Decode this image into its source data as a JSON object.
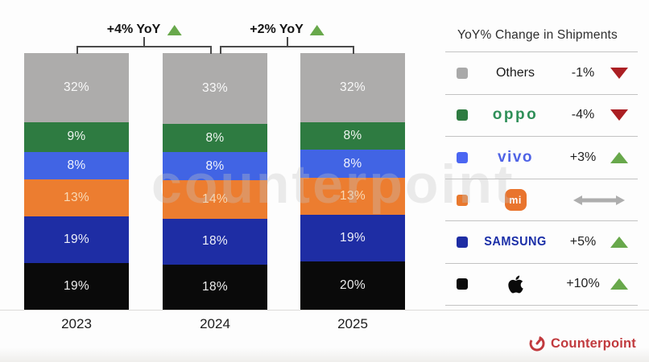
{
  "chart_data": {
    "type": "bar",
    "variant": "stacked-100-percent",
    "title": "",
    "categories": [
      "2023",
      "2024",
      "2025"
    ],
    "unit": "%",
    "grid": false,
    "legend_position": "right",
    "series_top_to_bottom": [
      {
        "name": "Others",
        "color": "#adacab",
        "values": [
          32,
          33,
          32
        ]
      },
      {
        "name": "OPPO",
        "color": "#2e7b41",
        "values": [
          9,
          8,
          8
        ]
      },
      {
        "name": "vivo",
        "color": "#4164e4",
        "values": [
          8,
          8,
          8
        ]
      },
      {
        "name": "Xiaomi",
        "color": "#ec7d30",
        "label_color": "#f8d9b5",
        "values": [
          13,
          14,
          13
        ]
      },
      {
        "name": "Samsung",
        "color": "#1e2da4",
        "values": [
          19,
          18,
          19
        ]
      },
      {
        "name": "Apple",
        "color": "#0a0a0a",
        "values": [
          19,
          18,
          20
        ]
      }
    ],
    "growth_annotations": [
      {
        "label": "+4% YoY",
        "trend": "up",
        "between": [
          "2023",
          "2024"
        ]
      },
      {
        "label": "+2% YoY",
        "trend": "up",
        "between": [
          "2024",
          "2025"
        ]
      }
    ]
  },
  "legend": {
    "title": "YoY% Change in Shipments",
    "rows": [
      {
        "brand": "Others",
        "logo": "plain",
        "text": "Others",
        "change": "-1%",
        "trend": "down",
        "swatch": "#a9a9a9"
      },
      {
        "brand": "OPPO",
        "logo": "oppo",
        "text": "oppo",
        "change": "-4%",
        "trend": "down",
        "swatch": "#2e7b41"
      },
      {
        "brand": "vivo",
        "logo": "vivo",
        "text": "vivo",
        "change": "+3%",
        "trend": "up",
        "swatch": "#4b66f2"
      },
      {
        "brand": "Xiaomi",
        "logo": "xiaomi",
        "text": "mi",
        "change": "",
        "trend": "flat",
        "swatch": "#e9792e"
      },
      {
        "brand": "Samsung",
        "logo": "samsung",
        "text": "SAMSUNG",
        "change": "+5%",
        "trend": "up",
        "swatch": "#1e2da4"
      },
      {
        "brand": "Apple",
        "logo": "apple",
        "text": "",
        "change": "+10%",
        "trend": "up",
        "swatch": "#0a0a0a"
      }
    ]
  },
  "watermark": "counterpoint",
  "footer": {
    "brand": "Counterpoint"
  },
  "colors": {
    "trend_up": "#68a84b",
    "trend_down": "#ab1f23",
    "flat_arrow": "#aeaeae",
    "counterpoint_red": "#c13a3e"
  }
}
